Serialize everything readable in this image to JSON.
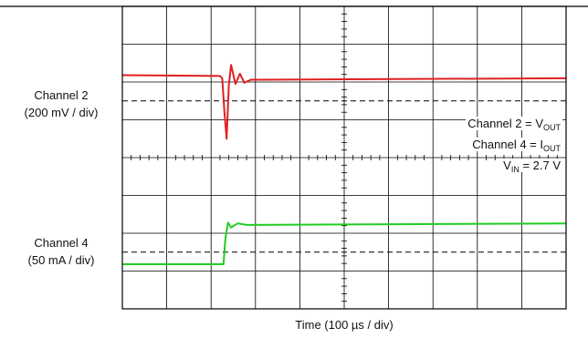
{
  "chart_data": {
    "type": "line",
    "xlabel": "Time (100 µs / div)",
    "grid": true,
    "divisions": {
      "horizontal": 10,
      "vertical": 8
    },
    "xlim": [
      0,
      10
    ],
    "ylim": [
      0,
      8
    ],
    "channel_labels": [
      {
        "name": "Channel 2",
        "scale": "(200 mV / div)"
      },
      {
        "name": "Channel 4",
        "scale": "(50 mA / div)"
      }
    ],
    "reference_levels": [
      1.5,
      5.5
    ],
    "annotations": [
      {
        "text": "Channel 2 = V",
        "sub": "OUT"
      },
      {
        "text": "Channel 4 = I",
        "sub": "OUT"
      },
      {
        "pre": "V",
        "sub": "IN",
        "text": " = 2.7 V"
      }
    ],
    "series": [
      {
        "name": "Channel 2",
        "color": "#e02020",
        "x": [
          0,
          2.2,
          2.25,
          2.3,
          2.35,
          2.4,
          2.45,
          2.55,
          2.65,
          2.75,
          2.9,
          3.2,
          10
        ],
        "y": [
          6.18,
          6.16,
          6.1,
          5.2,
          4.5,
          5.9,
          6.45,
          5.95,
          6.22,
          5.98,
          6.06,
          6.06,
          6.1
        ]
      },
      {
        "name": "Channel 4",
        "color": "#22cc22",
        "x": [
          0,
          2.28,
          2.32,
          2.38,
          2.45,
          2.6,
          2.8,
          10
        ],
        "y": [
          1.18,
          1.18,
          1.85,
          2.28,
          2.15,
          2.26,
          2.22,
          2.26
        ]
      }
    ]
  }
}
